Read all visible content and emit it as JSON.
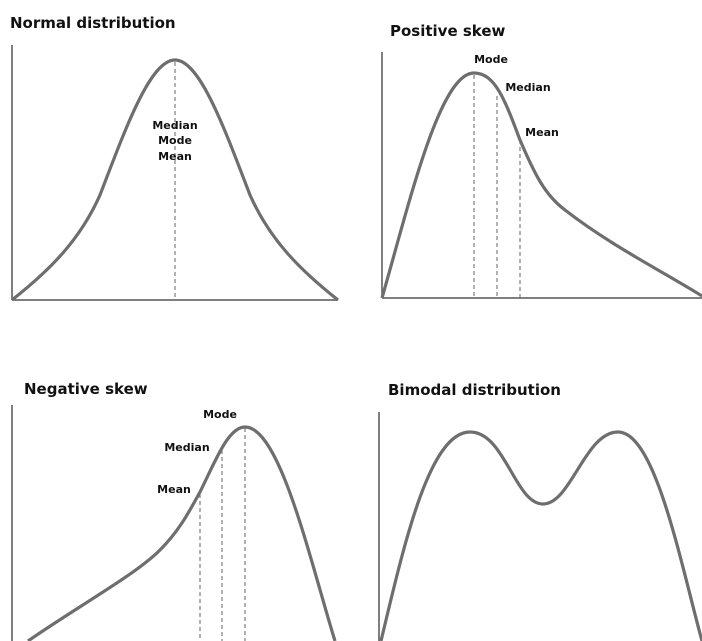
{
  "panels": [
    {
      "title": "Normal distribution",
      "labels": [
        "Median",
        "Mode",
        "Mean"
      ]
    },
    {
      "title": "Positive skew",
      "labels": [
        "Mode",
        "Median",
        "Mean"
      ]
    },
    {
      "title": "Negative skew",
      "labels": [
        "Mode",
        "Median",
        "Mean"
      ]
    },
    {
      "title": "Bimodal distribution",
      "labels": []
    }
  ]
}
